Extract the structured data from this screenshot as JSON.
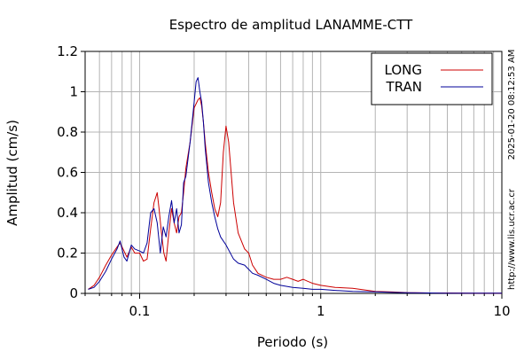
{
  "chart_data": {
    "type": "line",
    "title": "Espectro de amplitud LANAMME-CTT",
    "xlabel": "Periodo (s)",
    "ylabel": "Amplitud (cm/s)",
    "x_scale": "log",
    "xlim": [
      0.05,
      10
    ],
    "ylim": [
      0,
      1.2
    ],
    "x_ticks": [
      {
        "value": 0.1,
        "label": "0.1"
      },
      {
        "value": 1,
        "label": "1"
      },
      {
        "value": 10,
        "label": "10"
      }
    ],
    "y_ticks": [
      {
        "value": 0,
        "label": "0"
      },
      {
        "value": 0.2,
        "label": "0.2"
      },
      {
        "value": 0.4,
        "label": "0.4"
      },
      {
        "value": 0.6,
        "label": "0.6"
      },
      {
        "value": 0.8,
        "label": "0.8"
      },
      {
        "value": 1.0,
        "label": "1"
      },
      {
        "value": 1.2,
        "label": "1.2"
      }
    ],
    "grid": true,
    "legend_position": "top-right",
    "side_texts": [
      "2025-01-20 08:12:53 AM",
      "http://www.lis.ucr.ac.cr"
    ],
    "series": [
      {
        "name": "LONG",
        "color": "#cc0000",
        "x": [
          0.052,
          0.056,
          0.06,
          0.065,
          0.07,
          0.075,
          0.078,
          0.082,
          0.085,
          0.09,
          0.094,
          0.1,
          0.105,
          0.11,
          0.115,
          0.12,
          0.125,
          0.128,
          0.132,
          0.136,
          0.14,
          0.145,
          0.15,
          0.155,
          0.16,
          0.165,
          0.17,
          0.175,
          0.18,
          0.19,
          0.2,
          0.21,
          0.215,
          0.22,
          0.225,
          0.23,
          0.24,
          0.25,
          0.26,
          0.27,
          0.28,
          0.29,
          0.3,
          0.31,
          0.33,
          0.35,
          0.38,
          0.4,
          0.42,
          0.45,
          0.5,
          0.55,
          0.6,
          0.65,
          0.7,
          0.75,
          0.8,
          0.85,
          0.9,
          1.0,
          1.2,
          1.5,
          2.0,
          2.5,
          3.0,
          4.0,
          5.0,
          7.0,
          10.0
        ],
        "y": [
          0.02,
          0.04,
          0.08,
          0.14,
          0.19,
          0.23,
          0.25,
          0.21,
          0.18,
          0.23,
          0.2,
          0.2,
          0.16,
          0.17,
          0.32,
          0.45,
          0.5,
          0.42,
          0.3,
          0.2,
          0.16,
          0.3,
          0.42,
          0.35,
          0.3,
          0.38,
          0.4,
          0.5,
          0.62,
          0.75,
          0.92,
          0.96,
          0.97,
          0.93,
          0.85,
          0.75,
          0.6,
          0.5,
          0.42,
          0.38,
          0.45,
          0.7,
          0.83,
          0.75,
          0.45,
          0.3,
          0.22,
          0.2,
          0.14,
          0.1,
          0.08,
          0.07,
          0.07,
          0.08,
          0.07,
          0.06,
          0.07,
          0.06,
          0.05,
          0.04,
          0.03,
          0.025,
          0.01,
          0.007,
          0.004,
          0.002,
          0.002,
          0.001,
          0.001
        ]
      },
      {
        "name": "TRAN",
        "color": "#000099",
        "x": [
          0.052,
          0.056,
          0.06,
          0.065,
          0.07,
          0.075,
          0.078,
          0.082,
          0.085,
          0.09,
          0.094,
          0.1,
          0.105,
          0.11,
          0.115,
          0.12,
          0.125,
          0.13,
          0.135,
          0.14,
          0.145,
          0.15,
          0.155,
          0.16,
          0.165,
          0.17,
          0.175,
          0.18,
          0.19,
          0.2,
          0.205,
          0.21,
          0.215,
          0.22,
          0.225,
          0.23,
          0.24,
          0.25,
          0.26,
          0.27,
          0.28,
          0.3,
          0.33,
          0.35,
          0.38,
          0.42,
          0.45,
          0.5,
          0.55,
          0.6,
          0.7,
          0.8,
          0.9,
          1.0,
          1.2,
          1.5,
          2.0,
          2.5,
          3.0,
          4.0,
          5.0,
          7.0,
          10.0
        ],
        "y": [
          0.02,
          0.03,
          0.06,
          0.11,
          0.17,
          0.22,
          0.26,
          0.18,
          0.16,
          0.24,
          0.22,
          0.21,
          0.2,
          0.25,
          0.4,
          0.42,
          0.35,
          0.2,
          0.33,
          0.28,
          0.38,
          0.46,
          0.35,
          0.42,
          0.3,
          0.34,
          0.55,
          0.58,
          0.75,
          0.95,
          1.05,
          1.07,
          1.0,
          0.95,
          0.85,
          0.72,
          0.55,
          0.45,
          0.38,
          0.32,
          0.28,
          0.24,
          0.17,
          0.15,
          0.14,
          0.1,
          0.09,
          0.07,
          0.05,
          0.04,
          0.03,
          0.025,
          0.02,
          0.02,
          0.015,
          0.01,
          0.008,
          0.005,
          0.003,
          0.002,
          0.001,
          0.001,
          0.001
        ]
      }
    ]
  }
}
